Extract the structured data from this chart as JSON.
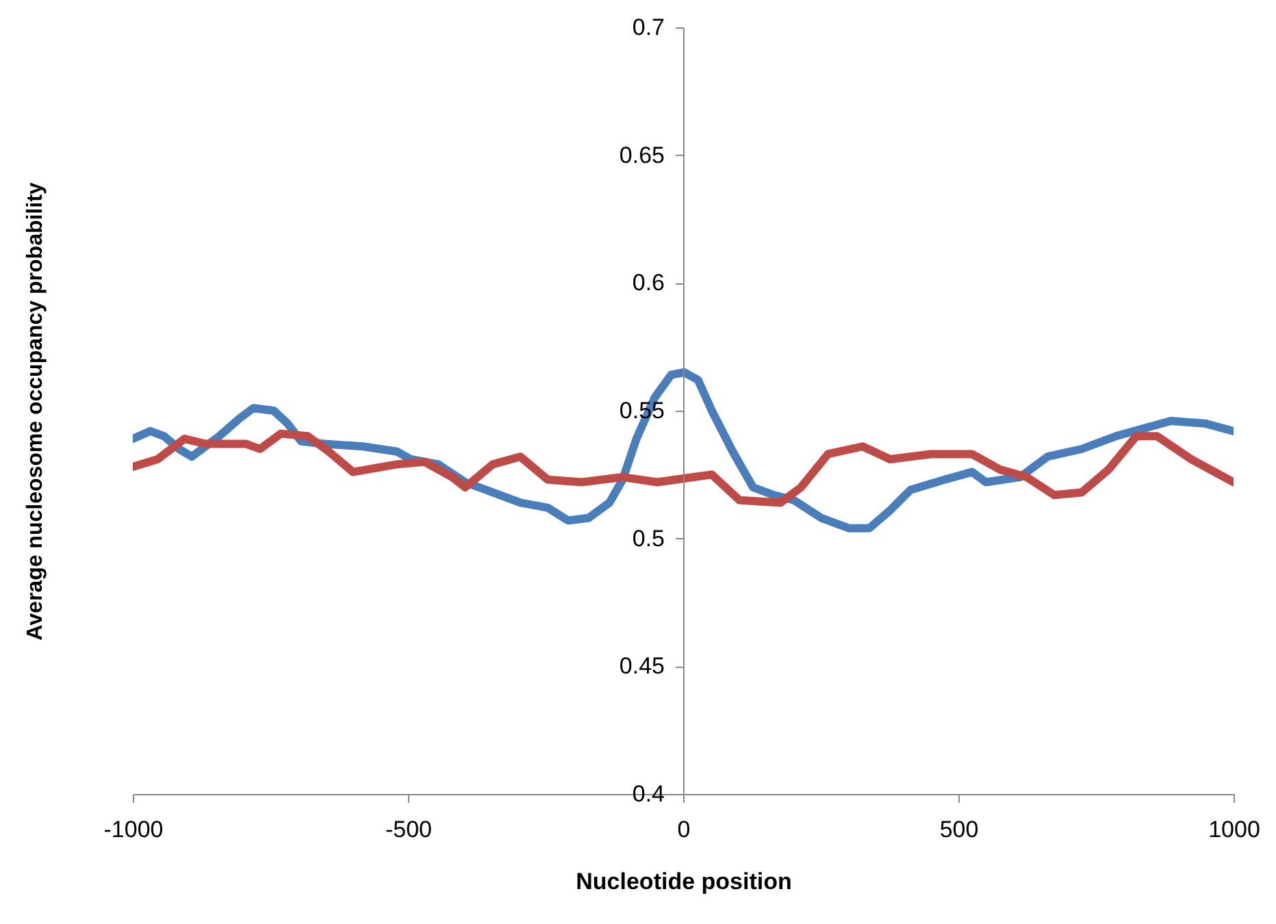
{
  "chart_data": {
    "type": "line",
    "xlabel": "Nucleotide position",
    "ylabel": "Average nucleosome  occupancy  probability",
    "xlim": [
      -1000,
      1000
    ],
    "xticks": [
      -1000,
      -500,
      0,
      500,
      1000
    ],
    "ylim": [
      0.4,
      0.7
    ],
    "yticks": [
      0.4,
      0.45,
      0.5,
      0.55,
      0.6,
      0.65,
      0.7
    ],
    "grid": false,
    "marker": "none",
    "line_style": "solid",
    "series": [
      {
        "color": "#4a7ebb",
        "x": [
          -1000,
          -968,
          -943,
          -916,
          -893,
          -843,
          -806,
          -781,
          -744,
          -719,
          -694,
          -652,
          -582,
          -520,
          -495,
          -445,
          -396,
          -346,
          -296,
          -246,
          -209,
          -172,
          -134,
          -110,
          -85,
          -52,
          -22,
          2,
          27,
          52,
          90,
          127,
          164,
          201,
          251,
          301,
          338,
          376,
          413,
          475,
          525,
          550,
          612,
          662,
          724,
          786,
          836,
          886,
          948,
          1000
        ],
        "values": [
          0.539,
          0.542,
          0.54,
          0.535,
          0.532,
          0.54,
          0.547,
          0.551,
          0.55,
          0.545,
          0.538,
          0.537,
          0.536,
          0.534,
          0.531,
          0.529,
          0.522,
          0.518,
          0.514,
          0.512,
          0.507,
          0.508,
          0.514,
          0.523,
          0.539,
          0.555,
          0.564,
          0.565,
          0.562,
          0.55,
          0.534,
          0.52,
          0.517,
          0.515,
          0.508,
          0.504,
          0.504,
          0.511,
          0.519,
          0.523,
          0.526,
          0.522,
          0.524,
          0.532,
          0.535,
          0.54,
          0.543,
          0.546,
          0.545,
          0.542
        ]
      },
      {
        "color": "#be4b48",
        "x": [
          -1000,
          -955,
          -906,
          -868,
          -794,
          -769,
          -731,
          -682,
          -644,
          -600,
          -520,
          -470,
          -420,
          -396,
          -346,
          -296,
          -246,
          -184,
          -110,
          -47,
          52,
          102,
          177,
          214,
          263,
          326,
          376,
          450,
          525,
          575,
          624,
          674,
          724,
          773,
          823,
          861,
          923,
          1000
        ],
        "values": [
          0.528,
          0.531,
          0.539,
          0.537,
          0.537,
          0.535,
          0.541,
          0.54,
          0.534,
          0.526,
          0.529,
          0.53,
          0.524,
          0.52,
          0.529,
          0.532,
          0.523,
          0.522,
          0.524,
          0.522,
          0.525,
          0.515,
          0.514,
          0.52,
          0.533,
          0.536,
          0.531,
          0.533,
          0.533,
          0.527,
          0.524,
          0.517,
          0.518,
          0.527,
          0.54,
          0.54,
          0.531,
          0.522
        ]
      }
    ]
  }
}
